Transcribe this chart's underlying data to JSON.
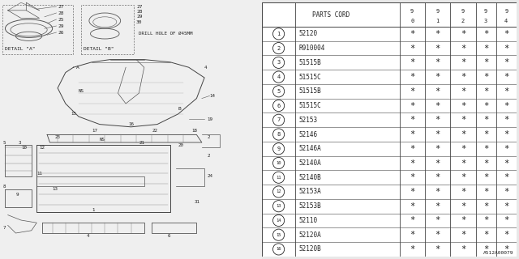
{
  "bg_color": "#e8e8e8",
  "table_bg": "#ffffff",
  "line_color": "#444444",
  "text_color": "#222222",
  "font_size": 5.5,
  "header_font_size": 5.5,
  "rows": [
    [
      "1",
      "52120"
    ],
    [
      "2",
      "R910004"
    ],
    [
      "3",
      "51515B"
    ],
    [
      "4",
      "51515C"
    ],
    [
      "5",
      "51515B"
    ],
    [
      "6",
      "51515C"
    ],
    [
      "7",
      "52153"
    ],
    [
      "8",
      "52146"
    ],
    [
      "9",
      "52146A"
    ],
    [
      "10",
      "52140A"
    ],
    [
      "11",
      "52140B"
    ],
    [
      "12",
      "52153A"
    ],
    [
      "13",
      "52153B"
    ],
    [
      "14",
      "52110"
    ],
    [
      "15",
      "52120A"
    ],
    [
      "16",
      "52120B"
    ]
  ],
  "diagram_label": "A512A00079"
}
